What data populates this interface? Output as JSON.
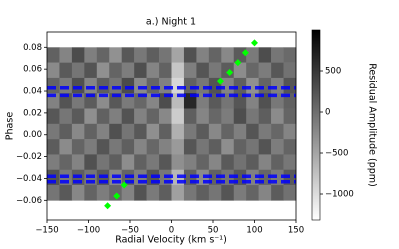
{
  "chart_data": {
    "type": "heatmap",
    "title": "a.) Night 1",
    "x_label": "Radial Velocity (km s⁻¹)",
    "y_label": "Phase",
    "colorbar_label": "Residual Amplitude (ppm)",
    "xlim": [
      -150,
      150
    ],
    "ylim": [
      -0.078,
      0.094
    ],
    "xticks": [
      {
        "value": -150,
        "label": "−150"
      },
      {
        "value": -100,
        "label": "−100"
      },
      {
        "value": -50,
        "label": "−50"
      },
      0,
      50,
      100,
      150
    ],
    "yticks": [
      {
        "value": -0.06,
        "label": "−0.06"
      },
      {
        "value": -0.04,
        "label": "−0.04"
      },
      {
        "value": -0.02,
        "label": "−0.02"
      },
      {
        "value": 0,
        "label": "0.00"
      },
      0.02,
      0.04,
      0.06,
      0.08
    ],
    "clim": [
      -1317,
      1000
    ],
    "cticks": [
      {
        "value": -1000,
        "label": "−1000"
      },
      {
        "value": -500,
        "label": "−500"
      },
      0,
      500
    ],
    "heatmap": {
      "x_range": [
        -150,
        150
      ],
      "y_range": [
        -0.06,
        0.08
      ],
      "z": [
        [
          120,
          -200,
          310,
          -150,
          80,
          -320,
          200,
          -90,
          150,
          -60,
          -500,
          260,
          -180,
          90,
          -240,
          170,
          -110,
          300,
          -70,
          40
        ],
        [
          -250,
          180,
          -60,
          240,
          -310,
          90,
          -140,
          280,
          -200,
          110,
          -800,
          -150,
          230,
          -90,
          160,
          -270,
          60,
          -130,
          210,
          -40
        ],
        [
          90,
          -120,
          270,
          -210,
          150,
          -60,
          320,
          -250,
          80,
          -170,
          -950,
          110,
          -80,
          250,
          -200,
          140,
          -310,
          90,
          -160,
          230
        ],
        [
          -180,
          240,
          -90,
          160,
          -270,
          200,
          -110,
          60,
          -220,
          300,
          -700,
          650,
          -140,
          180,
          -60,
          220,
          -190,
          260,
          -90,
          120
        ],
        [
          210,
          -70,
          180,
          -300,
          120,
          -150,
          250,
          -180,
          90,
          -240,
          -850,
          140,
          -210,
          60,
          -130,
          290,
          -80,
          150,
          -260,
          80
        ],
        [
          -90,
          150,
          -240,
          110,
          -180,
          270,
          -60,
          200,
          -300,
          130,
          -600,
          -100,
          170,
          -240,
          90,
          -150,
          230,
          -110,
          60,
          -200
        ],
        [
          160,
          -260,
          90,
          -130,
          230,
          -90,
          140,
          -210,
          60,
          -180,
          -400,
          220,
          -70,
          150,
          -290,
          110,
          -60,
          240,
          -140,
          90
        ],
        [
          -140,
          80,
          -190,
          260,
          -60,
          150,
          -280,
          120,
          -100,
          210,
          -300,
          -160,
          90,
          -220,
          180,
          -40,
          160,
          -200,
          110,
          -80
        ],
        [
          250,
          -110,
          140,
          -70,
          190,
          -240,
          80,
          -150,
          230,
          -90,
          -650,
          120,
          -260,
          110,
          -50,
          200,
          -170,
          70,
          -120,
          180
        ],
        [
          -60,
          190,
          -230,
          100,
          -140,
          60,
          -190,
          250,
          -110,
          150,
          -450,
          -80,
          140,
          -60,
          230,
          -120,
          90,
          -210,
          160,
          -30
        ]
      ]
    },
    "hlines": {
      "color": "#0000ff",
      "values": [
        0.043,
        0.036,
        -0.038,
        -0.043
      ]
    },
    "points": {
      "color": "#00ff00",
      "x": [
        -77,
        -66,
        -57,
        59,
        70,
        80,
        89,
        100
      ],
      "y": [
        -0.065,
        -0.056,
        -0.046,
        0.049,
        0.057,
        0.066,
        0.075,
        0.084
      ]
    }
  }
}
